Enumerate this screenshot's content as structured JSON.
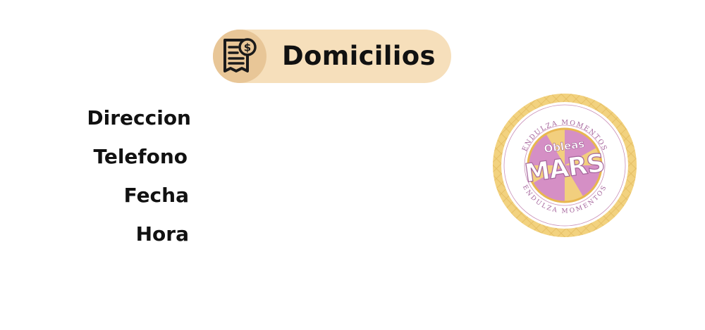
{
  "header": {
    "title": "Domicilios",
    "icon": "invoice-dollar-icon"
  },
  "form": {
    "labels": {
      "direccion": "Direccion",
      "telefono": "Telefono",
      "fecha": "Fecha",
      "hora": "Hora"
    }
  },
  "logo": {
    "tagline_top": "ENDULZA MOMENTOS",
    "tagline_bottom": "ENDULZA MOMENTOS",
    "brand_small": "Obleas",
    "brand_large": "MARS"
  },
  "colors": {
    "pill": "#f6dfbb",
    "icon_circle": "#e8c697",
    "text": "#111111",
    "logo_gold": "#efcc74",
    "logo_purple": "#a4649b",
    "logo_pink": "#d992c8"
  }
}
